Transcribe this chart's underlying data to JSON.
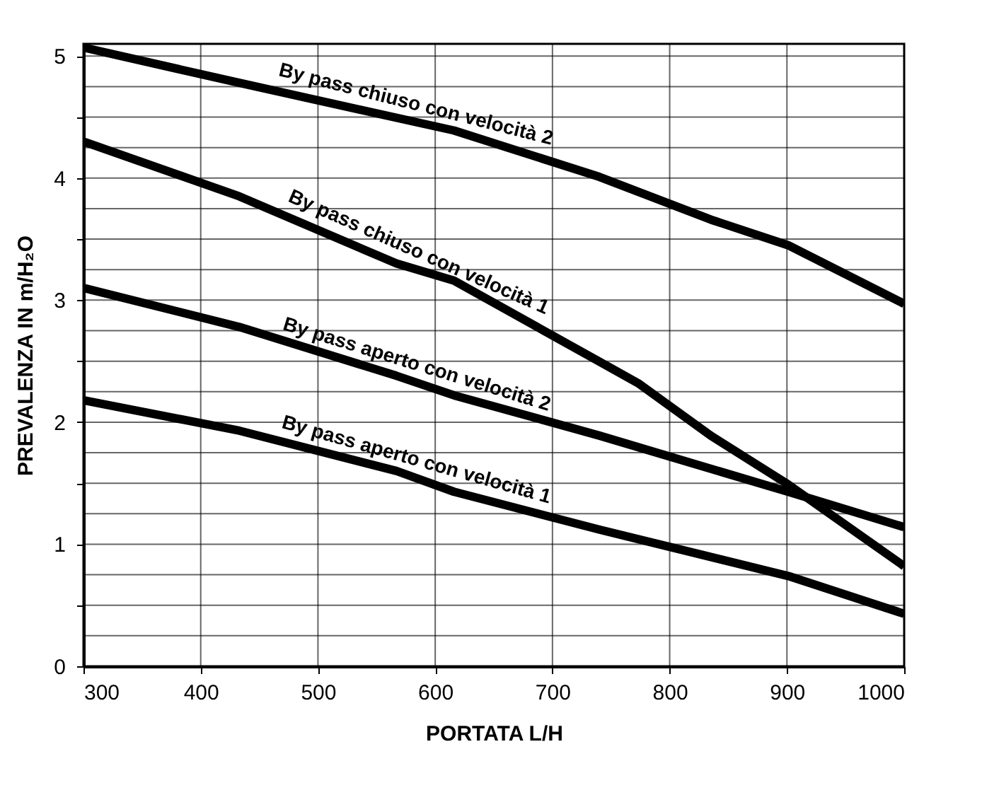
{
  "chart_data": {
    "type": "line",
    "xlabel": "PORTATA L/H",
    "ylabel": "PREVALENZA IN m/H₂O",
    "xlim": [
      300,
      1000
    ],
    "xticks": [
      300,
      400,
      500,
      600,
      700,
      800,
      900,
      1000
    ],
    "ylim": [
      0,
      5.1
    ],
    "yticks": [
      0,
      {
        "value": 0.25,
        "label": null
      },
      {
        "value": 0.5,
        "label": null
      },
      {
        "value": 0.75,
        "label": null
      },
      1,
      {
        "value": 1.25,
        "label": null
      },
      {
        "value": 1.5,
        "label": null
      },
      {
        "value": 1.75,
        "label": null
      },
      2,
      {
        "value": 2.25,
        "label": null
      },
      {
        "value": 2.5,
        "label": null
      },
      {
        "value": 2.75,
        "label": null
      },
      3,
      {
        "value": 3.25,
        "label": null
      },
      {
        "value": 3.5,
        "label": null
      },
      {
        "value": 3.75,
        "label": null
      },
      4,
      {
        "value": 4.25,
        "label": null
      },
      {
        "value": 4.5,
        "label": null
      },
      {
        "value": 4.75,
        "label": null
      },
      5
    ],
    "grid": true,
    "legend": false,
    "marker": "none",
    "line_style": "solid",
    "series": [
      {
        "name": "By pass chiuso con velocità 2",
        "color": "#000000",
        "x": [
          300,
          433,
          616,
          740,
          835,
          901,
          1000
        ],
        "values": [
          5.07,
          4.78,
          4.39,
          4.01,
          3.66,
          3.45,
          2.97
        ]
      },
      {
        "name": "By pass chiuso con velocità 1",
        "color": "#000000",
        "x": [
          300,
          433,
          567,
          616,
          773,
          835,
          901,
          1000
        ],
        "values": [
          4.3,
          3.85,
          3.3,
          3.16,
          2.32,
          1.89,
          1.49,
          0.82
        ]
      },
      {
        "name": "By pass aperto con velocità 2",
        "color": "#000000",
        "x": [
          300,
          433,
          567,
          616,
          740,
          901,
          1000
        ],
        "values": [
          3.1,
          2.78,
          2.38,
          2.22,
          1.89,
          1.43,
          1.14
        ]
      },
      {
        "name": "By pass aperto con velocità 1",
        "color": "#000000",
        "x": [
          300,
          433,
          567,
          616,
          740,
          901,
          1000
        ],
        "values": [
          2.18,
          1.93,
          1.6,
          1.43,
          1.12,
          0.74,
          0.43
        ]
      }
    ]
  }
}
